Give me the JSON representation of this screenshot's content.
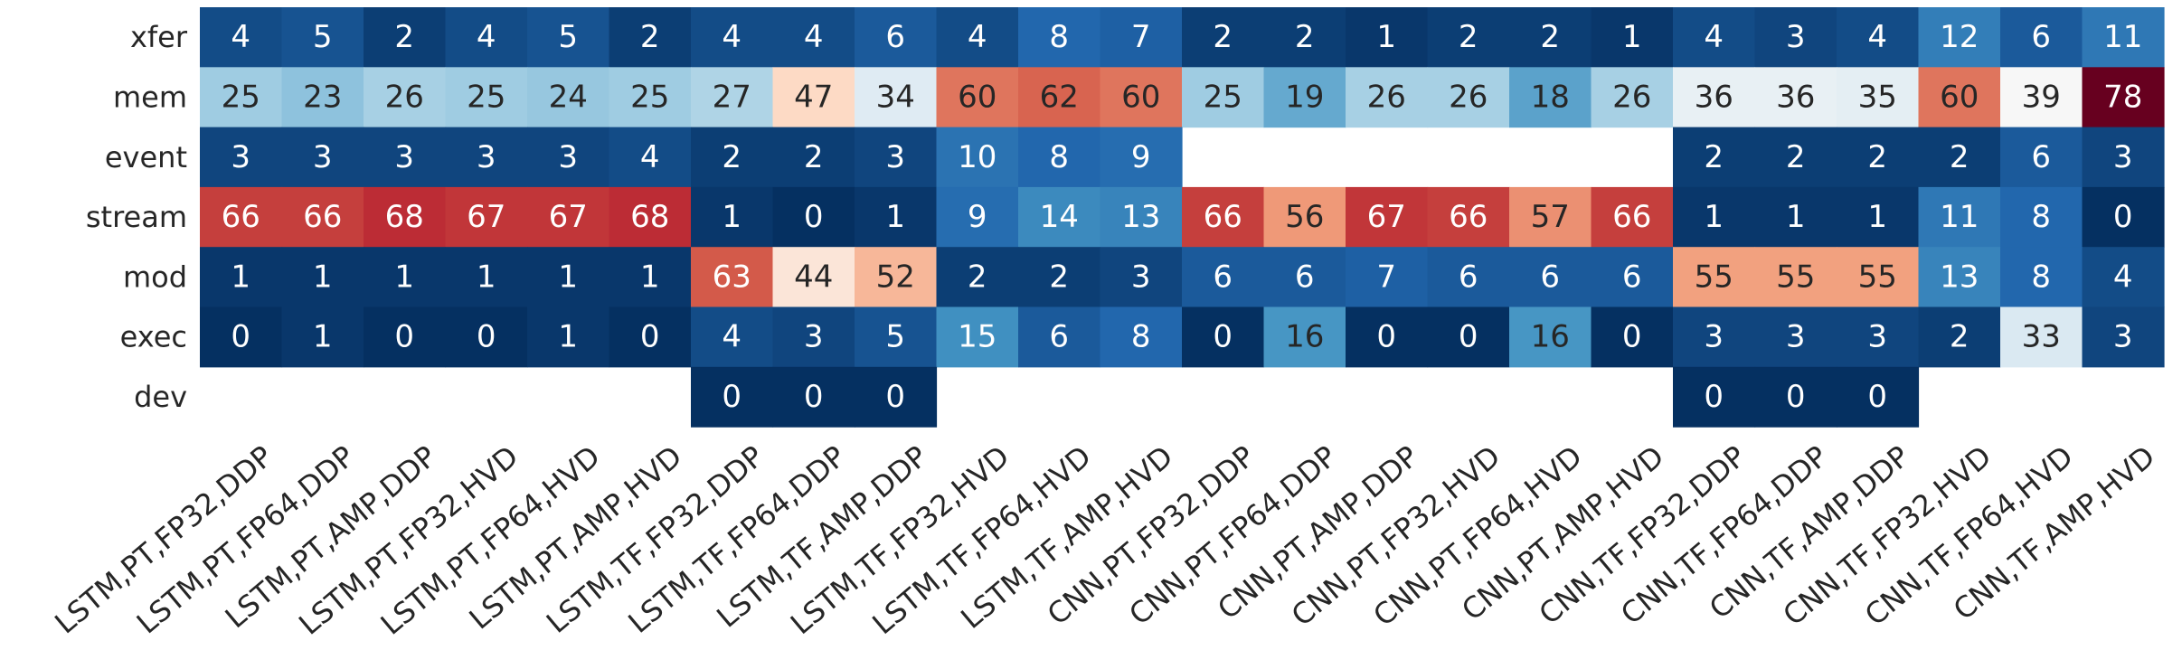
{
  "chart_data": {
    "type": "heatmap",
    "colormap": "RdBu_r",
    "value_range": [
      0,
      78
    ],
    "rows": [
      "xfer",
      "mem",
      "event",
      "stream",
      "mod",
      "exec",
      "dev"
    ],
    "columns": [
      "LSTM,PT,FP32,DDP",
      "LSTM,PT,FP64,DDP",
      "LSTM,PT,AMP,DDP",
      "LSTM,PT,FP32,HVD",
      "LSTM,PT,FP64,HVD",
      "LSTM,PT,AMP,HVD",
      "LSTM,TF,FP32,DDP",
      "LSTM,TF,FP64,DDP",
      "LSTM,TF,AMP,DDP",
      "LSTM,TF,FP32,HVD",
      "LSTM,TF,FP64,HVD",
      "LSTM,TF,AMP,HVD",
      "CNN,PT,FP32,DDP",
      "CNN,PT,FP64,DDP",
      "CNN,PT,AMP,DDP",
      "CNN,PT,FP32,HVD",
      "CNN,PT,FP64,HVD",
      "CNN,PT,AMP,HVD",
      "CNN,TF,FP32,DDP",
      "CNN,TF,FP64,DDP",
      "CNN,TF,AMP,DDP",
      "CNN,TF,FP32,HVD",
      "CNN,TF,FP64,HVD",
      "CNN,TF,AMP,HVD"
    ],
    "values": [
      [
        4,
        5,
        2,
        4,
        5,
        2,
        4,
        4,
        6,
        4,
        8,
        7,
        2,
        2,
        1,
        2,
        2,
        1,
        4,
        3,
        4,
        12,
        6,
        11
      ],
      [
        25,
        23,
        26,
        25,
        24,
        25,
        27,
        47,
        34,
        60,
        62,
        60,
        25,
        19,
        26,
        26,
        18,
        26,
        36,
        36,
        35,
        60,
        39,
        78
      ],
      [
        3,
        3,
        3,
        3,
        3,
        4,
        2,
        2,
        3,
        10,
        8,
        9,
        null,
        null,
        null,
        null,
        null,
        null,
        2,
        2,
        2,
        2,
        6,
        3
      ],
      [
        66,
        66,
        68,
        67,
        67,
        68,
        1,
        0,
        1,
        9,
        14,
        13,
        66,
        56,
        67,
        66,
        57,
        66,
        1,
        1,
        1,
        11,
        8,
        0
      ],
      [
        1,
        1,
        1,
        1,
        1,
        1,
        63,
        44,
        52,
        2,
        2,
        3,
        6,
        6,
        7,
        6,
        6,
        6,
        55,
        55,
        55,
        13,
        8,
        4
      ],
      [
        0,
        1,
        0,
        0,
        1,
        0,
        4,
        3,
        5,
        15,
        6,
        8,
        0,
        16,
        0,
        0,
        16,
        0,
        3,
        3,
        3,
        2,
        33,
        3
      ],
      [
        null,
        null,
        null,
        null,
        null,
        null,
        0,
        0,
        0,
        null,
        null,
        null,
        null,
        null,
        null,
        null,
        null,
        null,
        0,
        0,
        0,
        null,
        null,
        null
      ]
    ]
  }
}
